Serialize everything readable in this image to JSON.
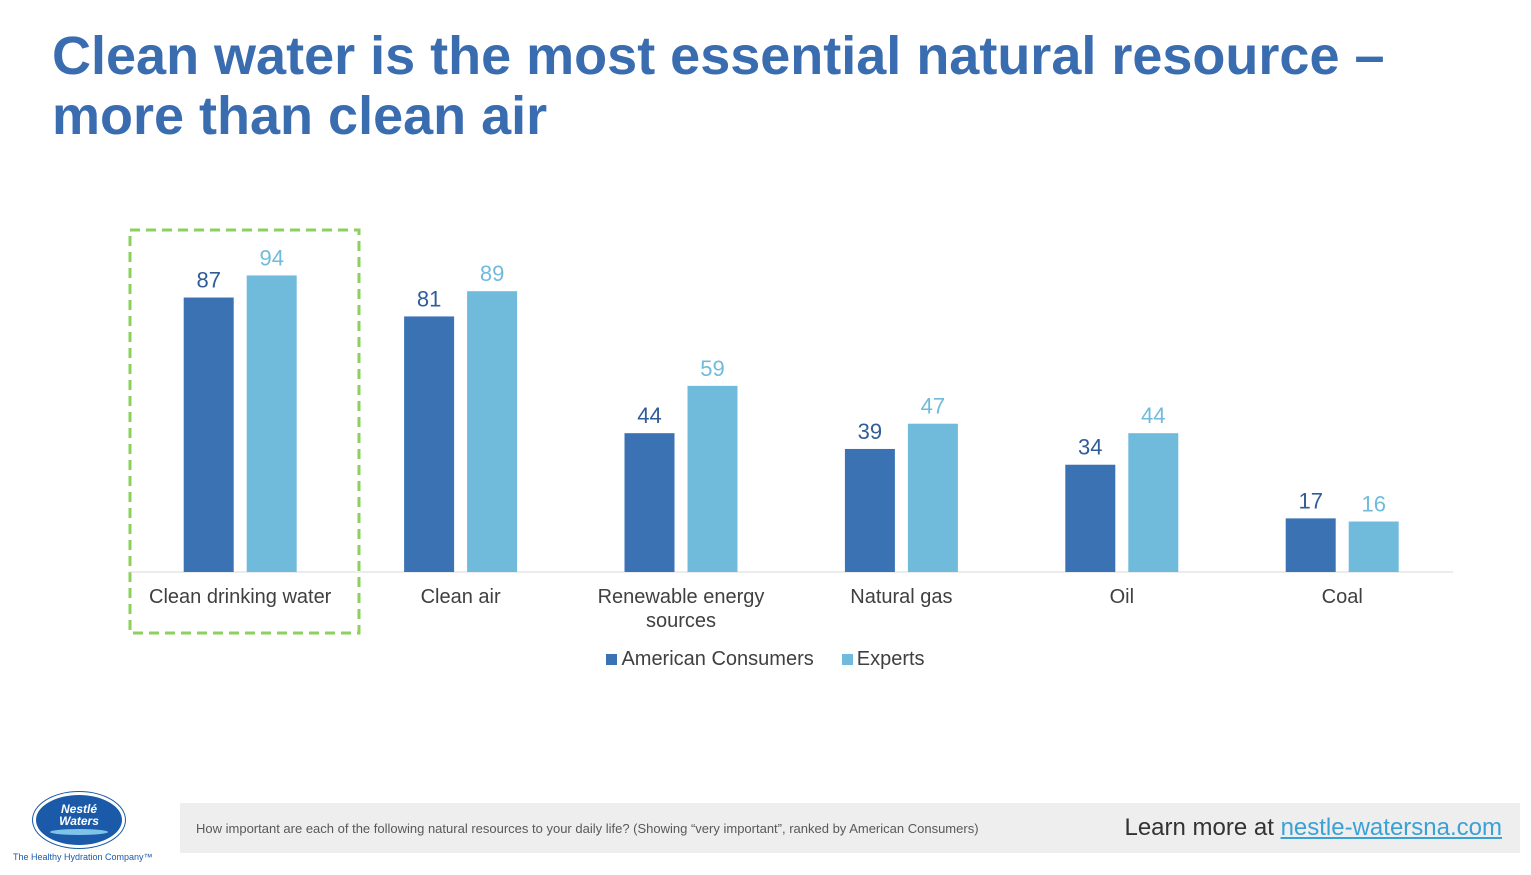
{
  "title": {
    "line1": "Clean water is the most essential natural resource –",
    "line2": "more than clean air"
  },
  "chart_data": {
    "type": "bar",
    "categories": [
      [
        "Clean drinking water"
      ],
      [
        "Clean air"
      ],
      [
        "Renewable energy",
        "sources"
      ],
      [
        "Natural gas"
      ],
      [
        "Oil"
      ],
      [
        "Coal"
      ]
    ],
    "series": [
      {
        "name": "American Consumers",
        "color": "#3b72b4",
        "values": [
          87,
          81,
          44,
          39,
          34,
          17
        ]
      },
      {
        "name": "Experts",
        "color": "#70bbdc",
        "values": [
          94,
          89,
          59,
          47,
          44,
          16
        ]
      }
    ],
    "ylim": [
      0,
      100
    ],
    "grid": false,
    "legend": "bottom-center",
    "highlight": {
      "category": "Clean drinking water",
      "style": "dashed-box",
      "color": "#8ed05c"
    }
  },
  "footer": {
    "question": "How important are each of the following natural resources to your daily life? (Showing “very important”, ranked by American Consumers)",
    "learn_more_prefix": "Learn more at ",
    "learn_more_link": "nestle-watersna.com"
  },
  "logo": {
    "line1": "Nestlé",
    "line2": "Waters",
    "tagline": "The Healthy Hydration Company™"
  }
}
